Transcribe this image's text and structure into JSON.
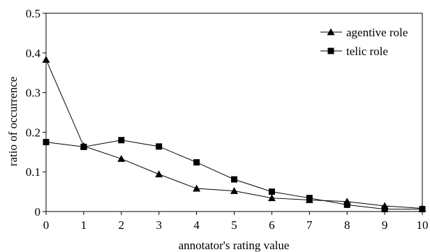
{
  "chart_data": {
    "type": "line",
    "xlabel": "annotator's rating value",
    "ylabel": "ratio of occurrence",
    "x": [
      0,
      1,
      2,
      3,
      4,
      5,
      6,
      7,
      8,
      9,
      10
    ],
    "xlim": [
      0,
      10
    ],
    "ylim": [
      0,
      0.5
    ],
    "x_ticks": [
      "0",
      "1",
      "2",
      "3",
      "4",
      "5",
      "6",
      "7",
      "8",
      "9",
      "10"
    ],
    "y_ticks": [
      "0",
      "0.1",
      "0.2",
      "0.3",
      "0.4",
      "0.5"
    ],
    "grid": false,
    "legend_position": "top-right",
    "series": [
      {
        "name": "agentive role",
        "marker": "triangle",
        "values": [
          0.383,
          0.165,
          0.133,
          0.094,
          0.058,
          0.052,
          0.034,
          0.029,
          0.025,
          0.014,
          0.008
        ]
      },
      {
        "name": "telic role",
        "marker": "square",
        "values": [
          0.175,
          0.163,
          0.18,
          0.164,
          0.124,
          0.081,
          0.05,
          0.034,
          0.017,
          0.006,
          0.006
        ]
      }
    ]
  }
}
